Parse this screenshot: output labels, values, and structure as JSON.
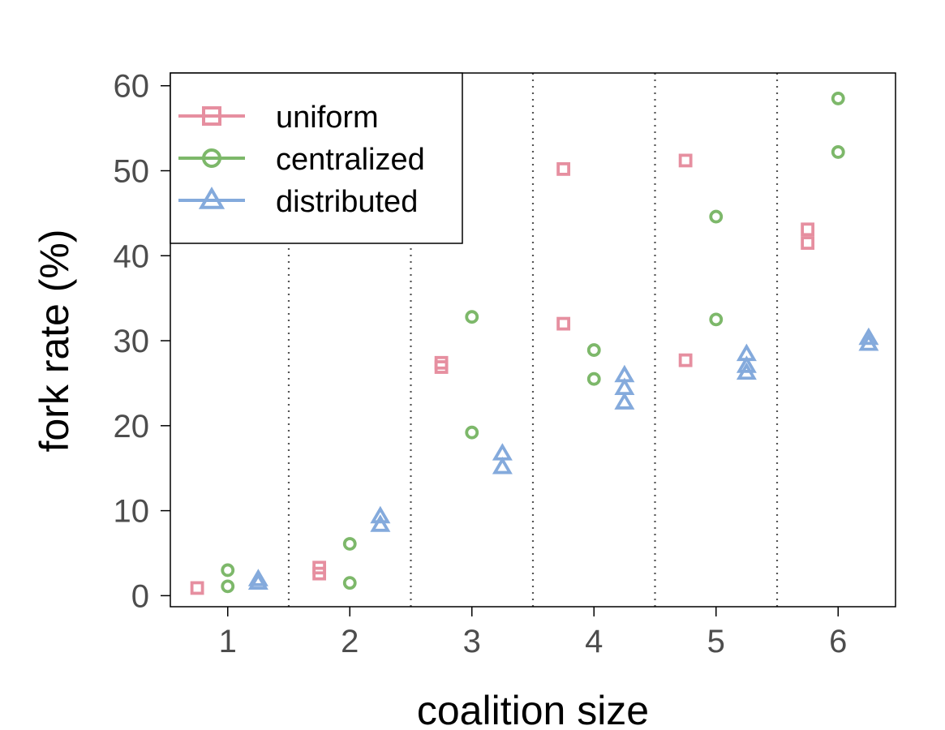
{
  "chart_data": {
    "type": "scatter",
    "title": "",
    "xlabel": "coalition size",
    "ylabel": "fork rate (%)",
    "x_ticks": [
      "1",
      "2",
      "3",
      "4",
      "5",
      "6"
    ],
    "y_ticks": [
      "0",
      "10",
      "20",
      "30",
      "40",
      "50",
      "60"
    ],
    "xlim": [
      0.53,
      6.47
    ],
    "ylim": [
      -1.3,
      61.5
    ],
    "group_separators": [
      1.5,
      2.5,
      3.5,
      4.5,
      5.5
    ],
    "legend_position": "top-left",
    "series": [
      {
        "name": "uniform",
        "marker": "square",
        "color": "#E68FA0",
        "x": [
          0.75,
          1.75,
          1.75,
          2.75,
          2.75,
          3.75,
          3.75,
          4.75,
          4.75,
          5.75,
          5.75
        ],
        "y": [
          0.9,
          2.6,
          3.3,
          26.9,
          27.4,
          32.0,
          50.2,
          27.7,
          51.2,
          41.5,
          43.1
        ]
      },
      {
        "name": "centralized",
        "marker": "circle",
        "color": "#7DB86A",
        "x": [
          1,
          1,
          2,
          2,
          3,
          3,
          4,
          4,
          5,
          5,
          6,
          6
        ],
        "y": [
          1.1,
          3.0,
          1.5,
          6.1,
          19.2,
          32.8,
          25.5,
          28.9,
          32.5,
          44.6,
          52.2,
          58.5
        ]
      },
      {
        "name": "distributed",
        "marker": "triangle",
        "color": "#84AADC",
        "x": [
          1.25,
          1.25,
          2.25,
          2.25,
          3.25,
          3.25,
          4.25,
          4.25,
          4.25,
          5.25,
          5.25,
          5.25,
          6.25,
          6.25
        ],
        "y": [
          1.5,
          1.9,
          8.3,
          9.3,
          15.1,
          16.7,
          22.7,
          24.4,
          25.9,
          26.2,
          27.0,
          28.4,
          29.6,
          30.3
        ]
      }
    ]
  }
}
